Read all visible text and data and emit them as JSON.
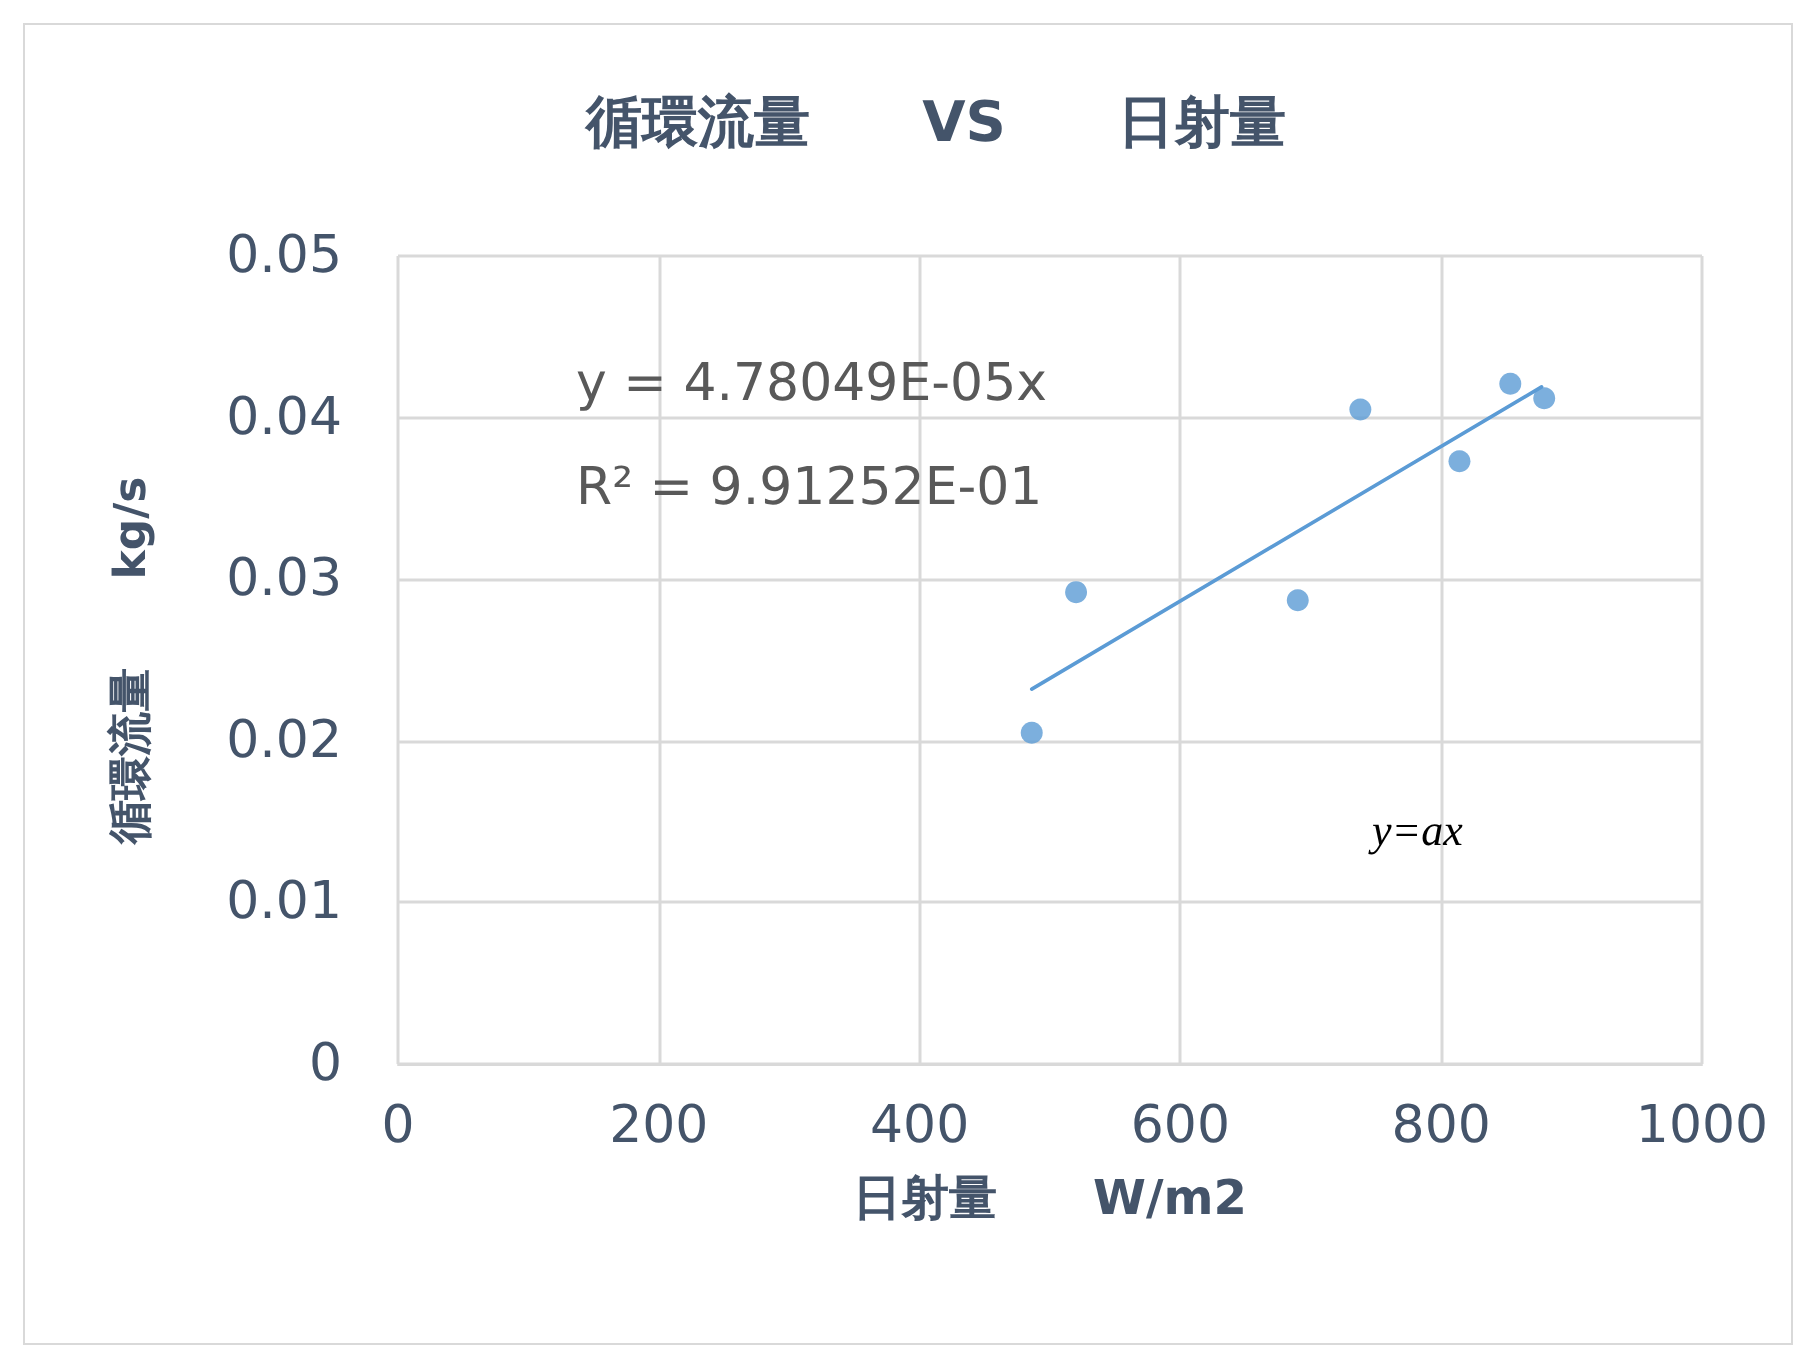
{
  "chart_data": {
    "type": "scatter",
    "title": "循環流量　　VS　　日射量",
    "xlabel": "日射量　　W/m2",
    "ylabel": "循環流量　　kg/s",
    "annotations": [
      "y = 4.78049E-05x",
      "R² = 9.91252E-01",
      "y=ax"
    ],
    "series": [
      {
        "color": "#5b9bd5",
        "marker": "circle",
        "x": [
          486,
          520,
          690,
          738,
          814,
          853,
          879
        ],
        "values": [
          0.0205,
          0.0292,
          0.0287,
          0.0405,
          0.0373,
          0.0421,
          0.0412
        ]
      },
      {
        "type": "line",
        "color": "#5b9bd5",
        "marker": "none",
        "line_style": "solid",
        "x": [
          486,
          877
        ],
        "values": [
          0.0232,
          0.0419
        ]
      }
    ],
    "xlim": [
      0,
      1000
    ],
    "xticks": [
      0,
      200,
      400,
      600,
      800,
      1000
    ],
    "ylim": [
      0,
      0.05
    ],
    "yticks": [
      0,
      0.01,
      0.02,
      0.03,
      0.04,
      0.05
    ],
    "grid": true
  }
}
